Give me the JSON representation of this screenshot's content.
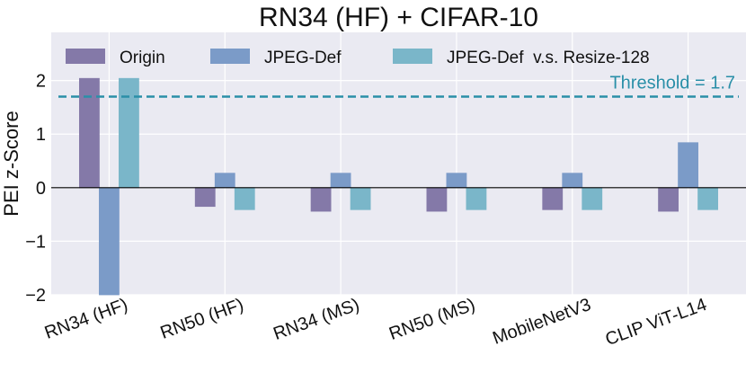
{
  "chart_data": {
    "type": "bar",
    "title": "RN34 (HF) + CIFAR-10",
    "xlabel": "",
    "ylabel": "PEI z-Score",
    "ylim": [
      -2,
      2.9
    ],
    "yticks": [
      -2,
      -1,
      0,
      1,
      2
    ],
    "ytick_labels": [
      "−2",
      "−1",
      "0",
      "1",
      "2"
    ],
    "categories": [
      "RN34 (HF)",
      "RN50 (HF)",
      "RN34 (MS)",
      "RN50 (MS)",
      "MobileNetV3",
      "CLIP ViT-L14"
    ],
    "series": [
      {
        "name": "Origin",
        "color": "#8479a8",
        "values": [
          2.04,
          -0.35,
          -0.44,
          -0.44,
          -0.41,
          -0.44
        ]
      },
      {
        "name": "JPEG-Def",
        "color": "#7b9bc8",
        "values": [
          -2.0,
          0.27,
          0.27,
          0.27,
          0.27,
          0.84
        ]
      },
      {
        "name": "JPEG-Def  v.s. Resize-128",
        "color": "#7ab6c9",
        "values": [
          2.04,
          -0.41,
          -0.41,
          -0.41,
          -0.41,
          -0.41
        ]
      }
    ],
    "threshold": {
      "value": 1.7,
      "label": "Threshold = 1.7",
      "color": "#2a8fa8",
      "style": "dashed"
    },
    "grid": true,
    "legend": "top",
    "background": "#eaeaf2"
  }
}
